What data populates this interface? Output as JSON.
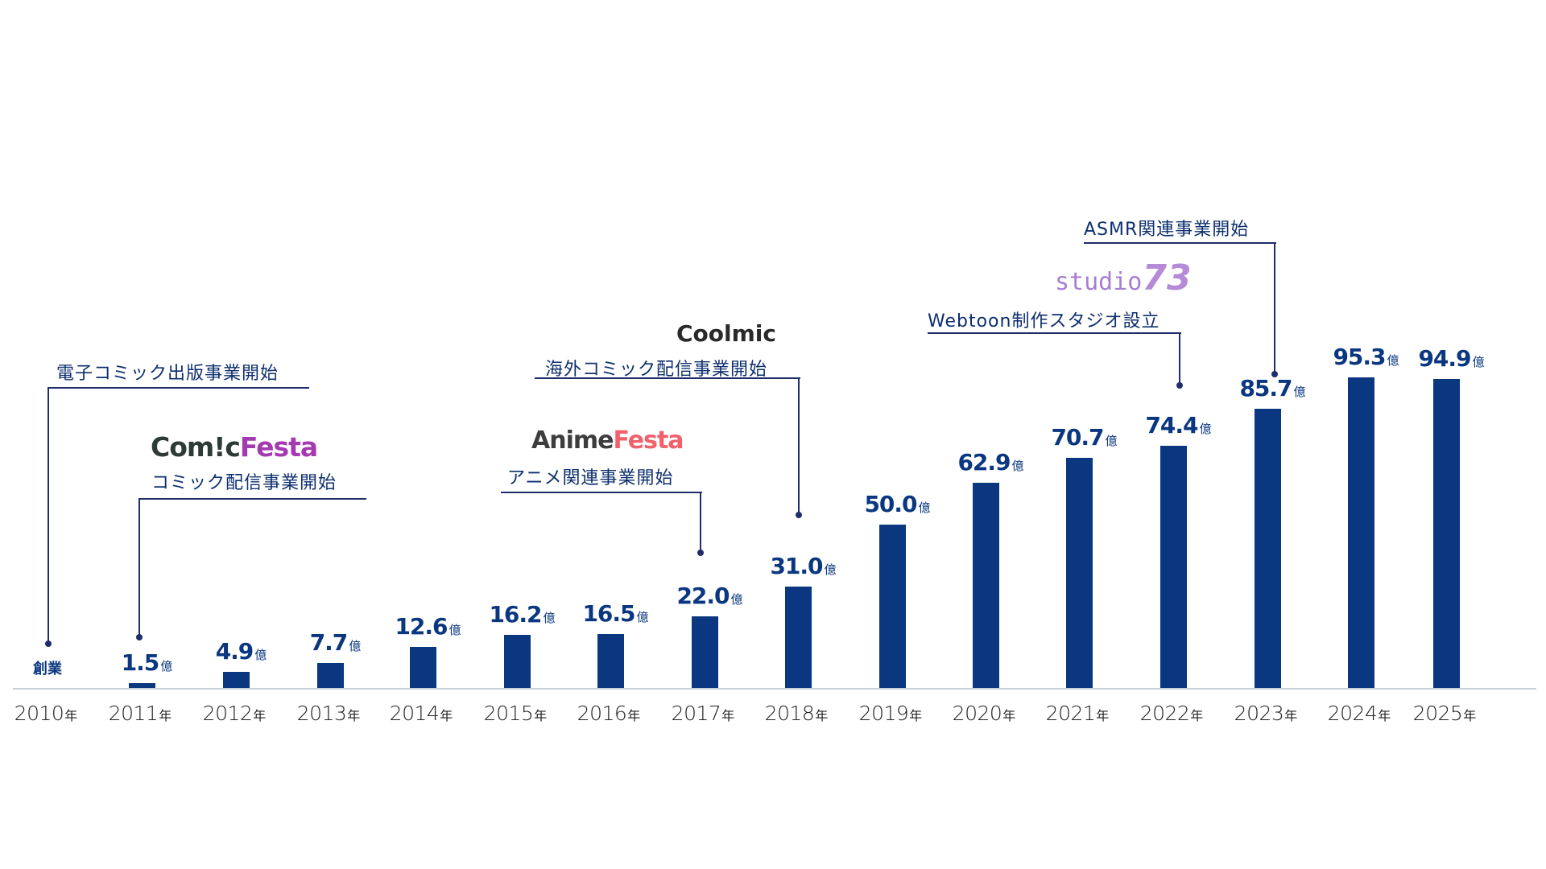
{
  "chart_data": {
    "type": "bar",
    "title": "",
    "xlabel": "",
    "ylabel": "",
    "unit": "億",
    "categories": [
      "2010年",
      "2011年",
      "2012年",
      "2013年",
      "2014年",
      "2015年",
      "2016年",
      "2017年",
      "2018年",
      "2019年",
      "2020年",
      "2021年",
      "2022年",
      "2023年",
      "2024年",
      "2025年"
    ],
    "values": [
      null,
      1.5,
      4.9,
      7.7,
      12.6,
      16.2,
      16.5,
      22.0,
      31.0,
      50.0,
      62.9,
      70.7,
      74.4,
      85.7,
      95.3,
      94.9
    ],
    "value_labels": [
      "創業",
      "1.5",
      "4.9",
      "7.7",
      "12.6",
      "16.2",
      "16.5",
      "22.0",
      "31.0",
      "50.0",
      "62.9",
      "70.7",
      "74.4",
      "85.7",
      "95.3",
      "94.9"
    ],
    "ylim": [
      0,
      100
    ],
    "grid": false,
    "legend": "none",
    "bar_color": "#0a3780",
    "annotations": [
      {
        "year": "2010年",
        "text": "電子コミック出版事業開始",
        "logo": ""
      },
      {
        "year": "2011年",
        "text": "コミック配信事業開始",
        "logo": "ComicFesta"
      },
      {
        "year": "2017年",
        "text": "アニメ関連事業開始",
        "logo": "AnimeFesta"
      },
      {
        "year": "2018年",
        "text": "海外コミック配信事業開始",
        "logo": "Coolmic"
      },
      {
        "year": "2022年",
        "text": "Webtoon制作スタジオ設立",
        "logo": "studio73"
      },
      {
        "year": "2023年",
        "text": "ASMR関連事業開始",
        "logo": ""
      }
    ]
  },
  "labels": {
    "unit": "億",
    "nen": "年",
    "founding": "創業",
    "years": [
      "2010",
      "2011",
      "2012",
      "2013",
      "2014",
      "2015",
      "2016",
      "2017",
      "2018",
      "2019",
      "2020",
      "2021",
      "2022",
      "2023",
      "2024",
      "2025"
    ],
    "values": [
      "",
      "1.5",
      "4.9",
      "7.7",
      "12.6",
      "16.2",
      "16.5",
      "22.0",
      "31.0",
      "50.0",
      "62.9",
      "70.7",
      "74.4",
      "85.7",
      "95.3",
      "94.9"
    ]
  },
  "callouts": {
    "c2010": {
      "text": "電子コミック出版事業開始"
    },
    "c2011": {
      "text": "コミック配信事業開始",
      "logo_a": "Com!c",
      "logo_b": "Festa"
    },
    "c2017": {
      "text": "アニメ関連事業開始",
      "logo_a": "Anime",
      "logo_b": "Festa"
    },
    "c2018": {
      "text": "海外コミック配信事業開始",
      "logo": "Coolmic"
    },
    "c2022": {
      "text": "Webtoon制作スタジオ設立",
      "logo_a": "studio",
      "logo_b": "73"
    },
    "c2023": {
      "text": "ASMR関連事業開始"
    }
  }
}
